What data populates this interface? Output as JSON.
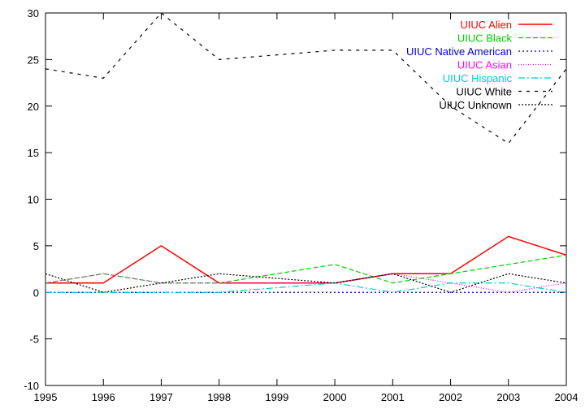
{
  "chart_data": {
    "type": "line",
    "title": "",
    "xlabel": "",
    "ylabel": "",
    "xlim": [
      1995,
      2004
    ],
    "ylim": [
      -10,
      30
    ],
    "grid": false,
    "legend_position": "top-right",
    "x": [
      1995,
      1996,
      1997,
      1998,
      1999,
      2000,
      2001,
      2002,
      2003,
      2004
    ],
    "x_ticks": [
      "1995",
      "1996",
      "1997",
      "1998",
      "1999",
      "2000",
      "2001",
      "2002",
      "2003",
      "2004"
    ],
    "y_ticks": [
      "-10",
      "-5",
      "0",
      "5",
      "10",
      "15",
      "20",
      "25",
      "30"
    ],
    "series": [
      {
        "name": "UIUC Alien",
        "color": "#ff0000",
        "dash": "solid",
        "values": [
          1,
          1,
          5,
          1,
          1,
          1,
          2,
          2,
          6,
          4
        ]
      },
      {
        "name": "UIUC Black",
        "color": "#00cc00",
        "dash": "dashed",
        "values": [
          1,
          2,
          1,
          1,
          2,
          3,
          1,
          2,
          3,
          4
        ]
      },
      {
        "name": "UIUC Native American",
        "color": "#0000cc",
        "dash": "dotted",
        "values": [
          0,
          0,
          0,
          0,
          0,
          0,
          0,
          0,
          0,
          0
        ]
      },
      {
        "name": "UIUC Asian",
        "color": "#ff00ff",
        "dash": "dotted-fine",
        "values": [
          1,
          2,
          1,
          1,
          1,
          1,
          2,
          1,
          0,
          1
        ]
      },
      {
        "name": "UIUC Hispanic",
        "color": "#00cccc",
        "dash": "dash-dot",
        "values": [
          0,
          0,
          0,
          0,
          0.5,
          1,
          0,
          1,
          1,
          0
        ]
      },
      {
        "name": "UIUC White",
        "color": "#000000",
        "dash": "sparse-dash",
        "values": [
          24,
          23,
          30,
          25,
          25.5,
          26,
          26,
          20,
          16,
          24
        ]
      },
      {
        "name": "UIUC Unknown",
        "color": "#000000",
        "dash": "dense-dot",
        "values": [
          2,
          0,
          1,
          2,
          1.5,
          1,
          2,
          0,
          2,
          1
        ]
      }
    ]
  }
}
